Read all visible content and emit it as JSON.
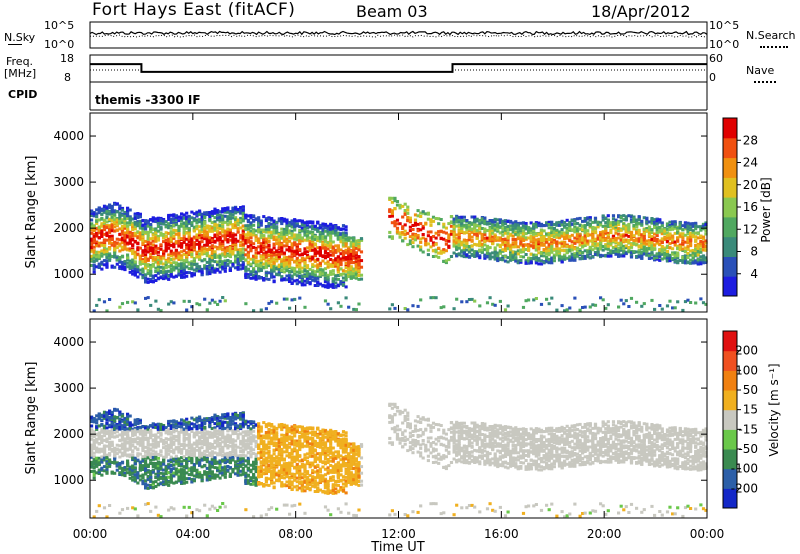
{
  "header": {
    "station": "Fort Hays East (fitACF)",
    "beam": "Beam 03",
    "date": "18/Apr/2012"
  },
  "noise_panel": {
    "left_label": "N.Sky",
    "right_label": "N.Search",
    "left_ticks": [
      "10^5",
      "10^0"
    ],
    "right_ticks": [
      "10^5",
      "10^0"
    ]
  },
  "freq_panel": {
    "left_label_line1": "Freq.",
    "left_label_line2": "[MHz]",
    "right_label": "Nave",
    "left_ticks": [
      "18",
      "8"
    ],
    "right_ticks": [
      "60",
      "0"
    ],
    "freq_steps_mhz": [
      {
        "t": 0.0,
        "f": 14.5
      },
      {
        "t": 2.0,
        "f": 11.5
      },
      {
        "t": 14.1,
        "f": 14.5
      },
      {
        "t": 24.0,
        "f": 14.5
      }
    ]
  },
  "cpid": {
    "label": "CPID",
    "mode": "themis -3300 IF"
  },
  "chart_data": [
    {
      "type": "heatmap",
      "name": "power",
      "ylabel": "Slant Range [km]",
      "yticks": [
        "1000",
        "2000",
        "3000",
        "4000"
      ],
      "ylim": [
        180,
        4500
      ],
      "xlim": [
        0,
        24
      ],
      "colorbar": {
        "label": "Power [dB]",
        "ticks": [
          "4",
          "8",
          "12",
          "16",
          "20",
          "24",
          "28"
        ],
        "range": [
          0,
          30
        ],
        "colors": [
          "#1d1de0",
          "#2a50b8",
          "#3a8a7a",
          "#50a860",
          "#8ac850",
          "#e0c020",
          "#f09010",
          "#f05010",
          "#e00000"
        ]
      }
    },
    {
      "type": "heatmap",
      "name": "velocity",
      "ylabel": "Slant Range [km]",
      "yticks": [
        "1000",
        "2000",
        "3000",
        "4000"
      ],
      "ylim": [
        180,
        4500
      ],
      "xlim": [
        0,
        24
      ],
      "xticks": [
        "00:00",
        "04:00",
        "08:00",
        "12:00",
        "16:00",
        "20:00",
        "00:00"
      ],
      "xlabel": "Time UT",
      "colorbar": {
        "label": "Velocity [m s⁻¹]",
        "ticks": [
          "200",
          "100",
          "50",
          "15",
          "-15",
          "-50",
          "-100",
          "-200"
        ],
        "range": [
          -250,
          250
        ],
        "colors": [
          "#1428c8",
          "#2c5fa8",
          "#3a8a50",
          "#6ac84a",
          "#c8c8c0",
          "#f0b020",
          "#f08010",
          "#f05020",
          "#e01010"
        ]
      }
    }
  ]
}
